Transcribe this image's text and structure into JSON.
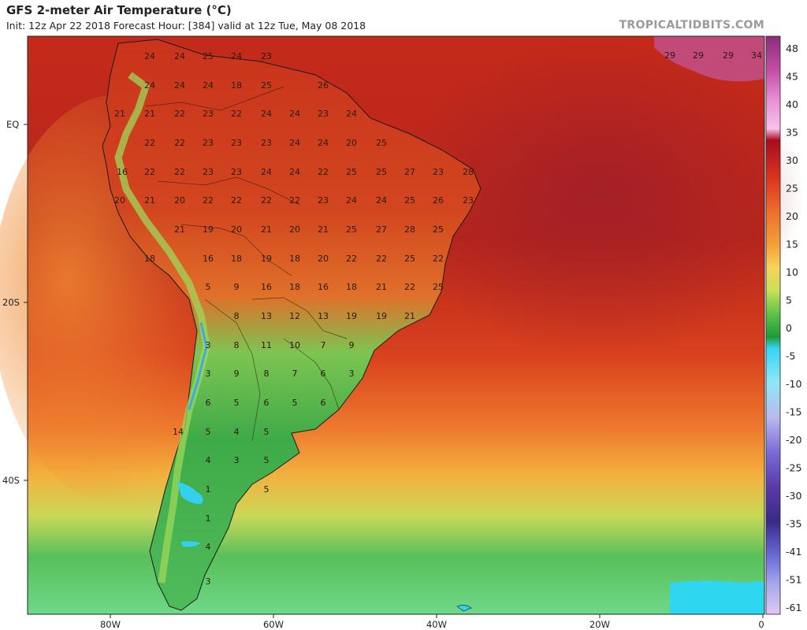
{
  "header": {
    "title": "GFS 2-meter Air Temperature (°C)",
    "subtitle": "Init: 12z Apr 22 2018   Forecast Hour: [384]   valid at 12z Tue, May 08 2018",
    "brand": "TROPICALTIDBITS.COM"
  },
  "axes": {
    "lon_ticks": [
      "80W",
      "60W",
      "40W",
      "20W",
      "0"
    ],
    "lat_ticks": [
      "EQ",
      "20S",
      "40S"
    ]
  },
  "colorbar": {
    "labels": [
      "48",
      "45",
      "40",
      "35",
      "30",
      "25",
      "20",
      "15",
      "10",
      "5",
      "0",
      "-5",
      "-10",
      "-15",
      "-20",
      "-25",
      "-30",
      "-35",
      "-41",
      "-51",
      "-61"
    ],
    "colors": [
      "#8a2d7a",
      "#c44fa8",
      "#e88fd2",
      "#f7c2ea",
      "#a50d1e",
      "#d8301e",
      "#ee6a2c",
      "#f3a03a",
      "#f6d35c",
      "#c8e05a",
      "#5fc34a",
      "#1f9a3a",
      "#35d4f0",
      "#8fe8f5",
      "#b9b9ee",
      "#7a6bd6",
      "#5a3aa8",
      "#3a2a88",
      "#6b6bd8",
      "#a9a9ee",
      "#e0c8f0"
    ]
  },
  "temps": [
    "24",
    "24",
    "25",
    "24",
    "23",
    "24",
    "24",
    "24",
    "18",
    "25",
    "26",
    "21",
    "21",
    "22",
    "23",
    "22",
    "24",
    "24",
    "23",
    "24",
    "22",
    "22",
    "23",
    "23",
    "23",
    "24",
    "24",
    "20",
    "25",
    "16",
    "22",
    "22",
    "23",
    "23",
    "24",
    "24",
    "22",
    "25",
    "25",
    "27",
    "23",
    "28",
    "20",
    "21",
    "20",
    "22",
    "22",
    "22",
    "22",
    "23",
    "24",
    "24",
    "25",
    "26",
    "23",
    "21",
    "19",
    "20",
    "21",
    "20",
    "21",
    "25",
    "27",
    "28",
    "25",
    "18",
    "16",
    "18",
    "19",
    "18",
    "20",
    "22",
    "22",
    "25",
    "22",
    "5",
    "9",
    "16",
    "18",
    "16",
    "18",
    "21",
    "22",
    "25",
    "8",
    "13",
    "12",
    "13",
    "19",
    "19",
    "21",
    "3",
    "8",
    "11",
    "10",
    "7",
    "9",
    "3",
    "9",
    "8",
    "7",
    "6",
    "3",
    "6",
    "5",
    "6",
    "5",
    "6",
    "14",
    "5",
    "4",
    "5",
    "4",
    "3",
    "5",
    "1",
    "1",
    "4",
    "5",
    "3",
    "29",
    "29",
    "29",
    "34"
  ]
}
